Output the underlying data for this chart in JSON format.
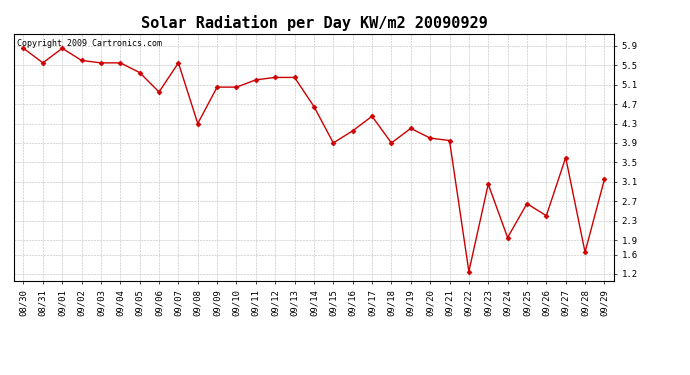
{
  "title": "Solar Radiation per Day KW/m2 20090929",
  "copyright_text": "Copyright 2009 Cartronics.com",
  "dates": [
    "08/30",
    "08/31",
    "09/01",
    "09/02",
    "09/03",
    "09/04",
    "09/05",
    "09/06",
    "09/07",
    "09/08",
    "09/09",
    "09/10",
    "09/11",
    "09/12",
    "09/13",
    "09/14",
    "09/15",
    "09/16",
    "09/17",
    "09/18",
    "09/19",
    "09/20",
    "09/21",
    "09/22",
    "09/23",
    "09/24",
    "09/25",
    "09/26",
    "09/27",
    "09/28",
    "09/29"
  ],
  "values": [
    5.85,
    5.55,
    5.85,
    5.6,
    5.55,
    5.55,
    5.35,
    4.95,
    5.55,
    4.3,
    5.05,
    5.05,
    5.2,
    5.25,
    5.25,
    4.65,
    3.9,
    4.15,
    4.45,
    3.9,
    4.2,
    4.0,
    3.95,
    1.25,
    3.05,
    1.95,
    2.65,
    2.4,
    3.6,
    1.65,
    3.15
  ],
  "line_color": "#cc0000",
  "marker": "D",
  "marker_size": 2.5,
  "background_color": "#ffffff",
  "plot_bg_color": "#ffffff",
  "grid_color": "#aaaaaa",
  "yticks": [
    1.2,
    1.6,
    1.9,
    2.3,
    2.7,
    3.1,
    3.5,
    3.9,
    4.3,
    4.7,
    5.1,
    5.5,
    5.9
  ],
  "ylim": [
    1.05,
    6.15
  ],
  "title_fontsize": 11,
  "tick_fontsize": 6.5,
  "copyright_fontsize": 6.0,
  "linewidth": 1.0
}
